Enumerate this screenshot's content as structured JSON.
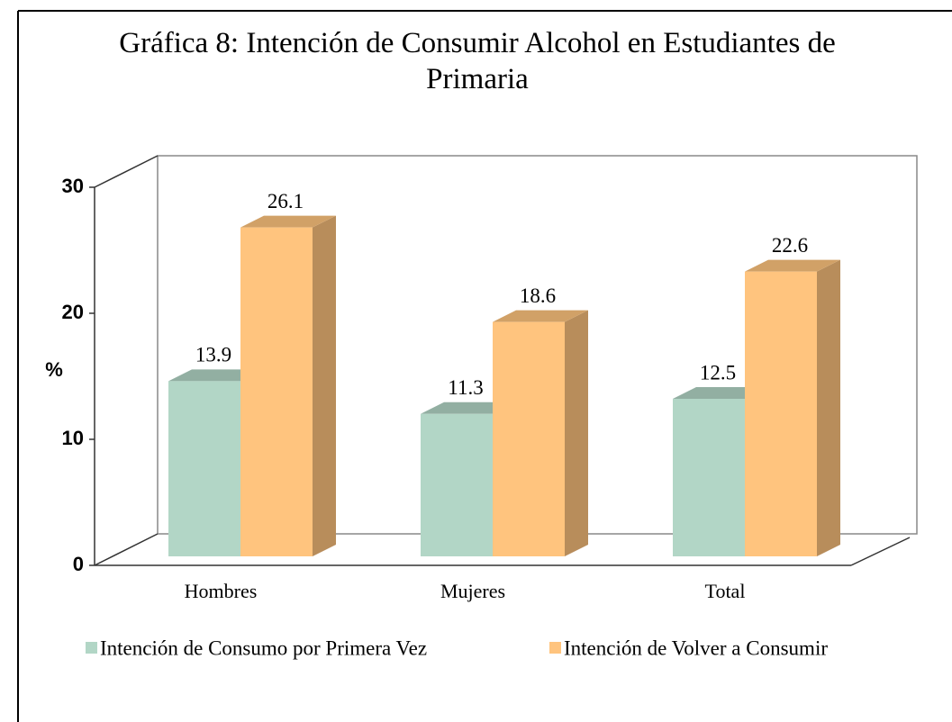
{
  "chart_data": {
    "type": "bar",
    "title": "Gráfica 8: Intención de Consumir Alcohol en Estudiantes de Primaria",
    "y_label": "%",
    "categories": [
      "Hombres",
      "Mujeres",
      "Total"
    ],
    "series": [
      {
        "name": "Intención de Consumo por Primera Vez",
        "color": "#b2d6c6",
        "values": [
          13.9,
          11.3,
          12.5
        ]
      },
      {
        "name": "Intención de Volver a Consumir",
        "color": "#ffc47e",
        "values": [
          26.1,
          18.6,
          22.6
        ]
      }
    ],
    "ylim": [
      0,
      30
    ],
    "yticks": [
      0,
      10,
      20,
      30
    ]
  }
}
